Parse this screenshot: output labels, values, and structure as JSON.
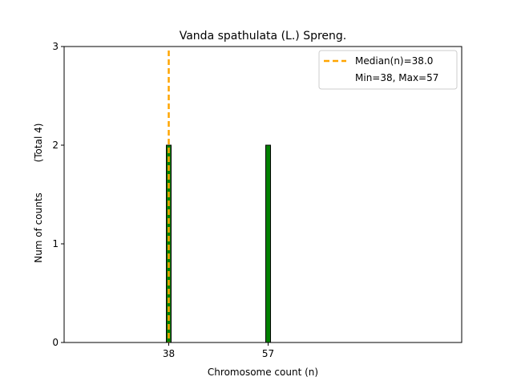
{
  "chart_data": {
    "type": "bar",
    "title": "Vanda spathulata (L.) Spreng.",
    "xlabel": "Chromosome count (n)",
    "ylabel": "Num of counts",
    "ylabel_total": "(Total 4)",
    "x": [
      38,
      57
    ],
    "values": [
      2,
      2
    ],
    "xlim": [
      18,
      94
    ],
    "ylim": [
      0,
      3
    ],
    "yticks": [
      0,
      1,
      2,
      3
    ],
    "xticks": [
      38,
      57
    ],
    "bar_color": "#008000",
    "median": 38.0,
    "median_color": "#FFA500",
    "legend": {
      "placement": "top-right",
      "median_label": "Median(n)=38.0",
      "range_label": "Min=38, Max=57"
    },
    "grid": false
  }
}
